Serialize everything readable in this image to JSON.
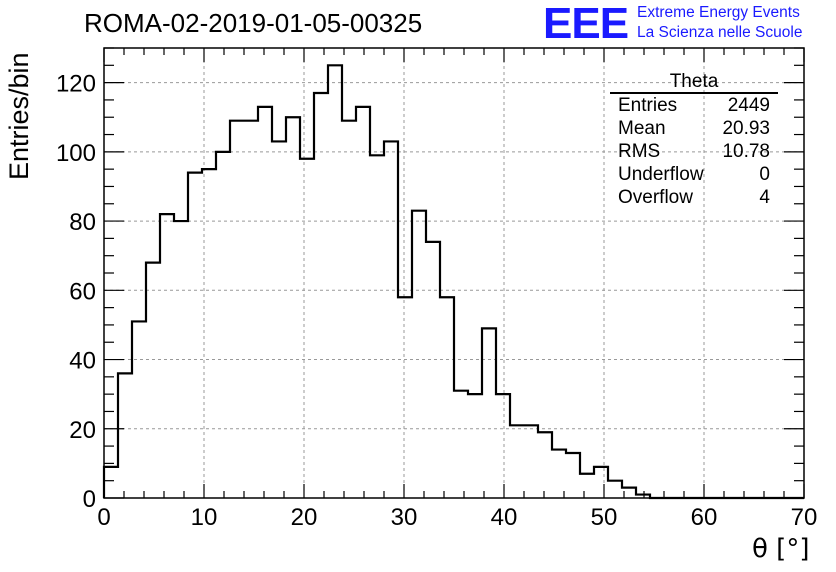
{
  "title": "ROMA-02-2019-01-05-00325",
  "logo": {
    "mark": "EEE",
    "line1": "Extreme Energy Events",
    "line2": "La Scienza nelle Scuole",
    "color": "#1a1aff"
  },
  "stats": {
    "name": "Theta",
    "rows": [
      {
        "label": "Entries",
        "value": "2449"
      },
      {
        "label": "Mean",
        "value": "20.93"
      },
      {
        "label": "RMS",
        "value": "10.78"
      },
      {
        "label": "Underflow",
        "value": "0"
      },
      {
        "label": "Overflow",
        "value": "4"
      }
    ]
  },
  "chart_data": {
    "type": "histogram",
    "title": "ROMA-02-2019-01-05-00325",
    "xlabel": "θ [°]",
    "ylabel": "Entries/bin",
    "xlim": [
      0,
      70
    ],
    "ylim": [
      0,
      130
    ],
    "bin_width": 1.4,
    "grid": true,
    "x_ticks": [
      0,
      10,
      20,
      30,
      40,
      50,
      60,
      70
    ],
    "y_ticks": [
      0,
      20,
      40,
      60,
      80,
      100,
      120
    ],
    "bins_start": 0,
    "values": [
      9,
      36,
      51,
      68,
      82,
      80,
      94,
      95,
      100,
      109,
      109,
      113,
      103,
      110,
      98,
      117,
      125,
      109,
      113,
      99,
      103,
      58,
      83,
      74,
      58,
      31,
      30,
      49,
      30,
      21,
      21,
      19,
      14,
      13,
      7,
      9,
      5,
      3,
      1,
      0,
      0,
      0,
      0,
      0,
      0,
      0,
      0,
      0,
      0,
      0
    ]
  }
}
